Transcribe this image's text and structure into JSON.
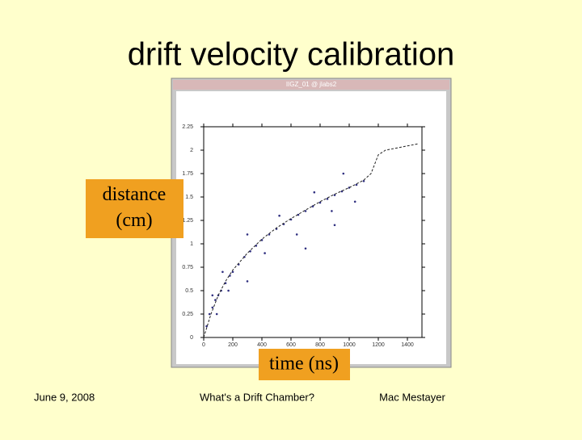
{
  "slide": {
    "title": "drift velocity calibration",
    "window_title": "IIGZ_01 @ jlabs2",
    "footer_left": "June 9, 2008",
    "footer_center": "What's a Drift Chamber?",
    "footer_right": "Mac Mestayer"
  },
  "chart_data": {
    "type": "scatter",
    "y_label": "distance (cm)",
    "x_label": "time (ns)",
    "xlim": [
      0,
      1500
    ],
    "xticks": [
      0,
      200,
      400,
      600,
      800,
      1000,
      1200,
      1400
    ],
    "ylim": [
      0,
      2.25
    ],
    "yticks": [
      0,
      0.25,
      0.5,
      0.75,
      1,
      1.25,
      1.5,
      1.75,
      2,
      2.25
    ],
    "grid": false,
    "series": [
      {
        "color": "#303080",
        "x": [
          20,
          40,
          60,
          80,
          100,
          120,
          150,
          180,
          200,
          240,
          280,
          320,
          360,
          400,
          450,
          500,
          550,
          600,
          650,
          700,
          750,
          800,
          850,
          900,
          950,
          1000,
          1050,
          1100,
          60,
          90,
          130,
          170,
          300,
          420,
          520,
          640,
          760,
          880,
          960,
          1040,
          700,
          300,
          900
        ],
        "values": [
          0.12,
          0.25,
          0.32,
          0.4,
          0.45,
          0.5,
          0.58,
          0.66,
          0.7,
          0.78,
          0.86,
          0.92,
          0.98,
          1.04,
          1.1,
          1.16,
          1.21,
          1.26,
          1.31,
          1.35,
          1.4,
          1.44,
          1.48,
          1.52,
          1.56,
          1.6,
          1.63,
          1.67,
          0.45,
          0.25,
          0.7,
          0.5,
          1.1,
          0.9,
          1.3,
          1.1,
          1.55,
          1.35,
          1.75,
          1.45,
          0.95,
          0.6,
          1.2
        ]
      },
      {
        "color": "#202020",
        "dashed": true,
        "x": [
          0,
          50,
          100,
          150,
          200,
          300,
          400,
          500,
          600,
          700,
          800,
          900,
          1000,
          1100,
          1150,
          1200,
          1250,
          1350,
          1480
        ],
        "values": [
          0,
          0.25,
          0.45,
          0.6,
          0.72,
          0.9,
          1.05,
          1.17,
          1.27,
          1.36,
          1.45,
          1.53,
          1.6,
          1.68,
          1.75,
          1.95,
          2,
          2.03,
          2.07
        ]
      }
    ]
  }
}
